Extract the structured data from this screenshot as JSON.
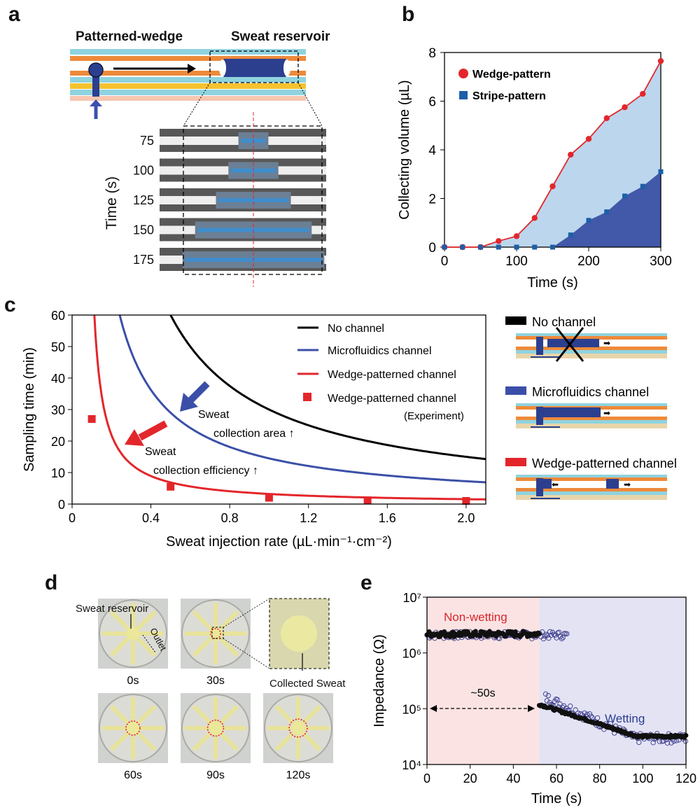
{
  "panels": {
    "a": {
      "letter": "a",
      "patterned_wedge": "Patterned-wedge",
      "sweat_reservoir": "Sweat reservoir",
      "ylabel": "Time (s)",
      "times": [
        "75",
        "100",
        "125",
        "150",
        "175"
      ],
      "fill_fraction": [
        0.18,
        0.3,
        0.45,
        0.7,
        0.85
      ]
    },
    "b": {
      "letter": "b"
    },
    "c": {
      "letter": "c",
      "schematic_labels": [
        "No channel",
        "Microfluidics channel",
        "Wedge-patterned channel"
      ],
      "colors": {
        "no_channel": "#000000",
        "micro": "#3b4fa8",
        "wedge": "#e3262b"
      },
      "annot1": "Sweat",
      "annot1b": "collection area ↑",
      "annot2": "Sweat",
      "annot2b": "collection efficiency ↑",
      "legend_exp_note": "(Experiment)"
    },
    "d": {
      "letter": "d",
      "sweat_reservoir": "Sweat  reservoir",
      "outlet": "Outlet",
      "collected": "Collected  Sweat",
      "times": [
        "0s",
        "30s",
        "60s",
        "90s",
        "120s"
      ]
    },
    "e": {
      "letter": "e",
      "non_wetting": "Non-wetting",
      "wetting": "Wetting",
      "approx": "~50s"
    }
  },
  "chart_data": [
    {
      "id": "b",
      "type": "area",
      "xlabel": "Time (s)",
      "ylabel": "Collecting volume (µL)",
      "xlim": [
        0,
        300
      ],
      "ylim": [
        0,
        8
      ],
      "xticks": [
        0,
        100,
        200,
        300
      ],
      "yticks": [
        0,
        2,
        4,
        6,
        8
      ],
      "legend_position": "top-left",
      "series": [
        {
          "name": "Wedge-pattern",
          "color": "#e3262b",
          "fill": "#bcd6ee",
          "marker": "circle",
          "x": [
            0,
            25,
            50,
            75,
            100,
            125,
            150,
            175,
            200,
            225,
            250,
            275,
            300
          ],
          "y": [
            0,
            0,
            0,
            0.25,
            0.45,
            1.2,
            2.5,
            3.8,
            4.45,
            5.3,
            5.75,
            6.3,
            7.65
          ]
        },
        {
          "name": "Stripe-pattern",
          "color": "#1d5fa8",
          "fill": "#4258a8",
          "marker": "square",
          "x": [
            0,
            25,
            50,
            75,
            100,
            125,
            150,
            175,
            200,
            225,
            250,
            275,
            300
          ],
          "y": [
            0,
            0,
            0,
            0,
            0,
            0,
            0,
            0.5,
            1.1,
            1.45,
            2.1,
            2.5,
            3.1
          ]
        }
      ]
    },
    {
      "id": "c",
      "type": "line",
      "xlabel": "Sweat injection rate (µL·min⁻¹·cm⁻²)",
      "ylabel": "Sampling time (min)",
      "xlim": [
        0,
        2.1
      ],
      "ylim": [
        0,
        60
      ],
      "xticks": [
        0,
        0.4,
        0.8,
        1.2,
        1.6,
        2.0
      ],
      "xticklabels": [
        "0",
        "0.4",
        "0.8",
        "1.2",
        "1.6",
        "2.0"
      ],
      "yticks": [
        0,
        10,
        20,
        30,
        40,
        50,
        60
      ],
      "legend_position": "top-right",
      "series": [
        {
          "name": "No channel",
          "color": "#000000",
          "type": "line",
          "k": 30
        },
        {
          "name": "Microfluidics channel",
          "color": "#3b4fa8",
          "type": "line",
          "k": 14.5
        },
        {
          "name": "Wedge-patterned channel",
          "color": "#e3262b",
          "type": "line",
          "k": 3.0,
          "x0": 0.063
        },
        {
          "name": "Wedge-patterned channel",
          "color": "#e3262b",
          "type": "scatter",
          "marker": "square",
          "x": [
            0.1,
            0.5,
            1.0,
            1.5,
            2.0
          ],
          "y": [
            27,
            5.5,
            2.0,
            1.2,
            1.0
          ]
        }
      ]
    },
    {
      "id": "e",
      "type": "scatter",
      "xlabel": "Time (s)",
      "ylabel": "Impedance (Ω)",
      "xlim": [
        0,
        120
      ],
      "ylim": [
        10000,
        10000000
      ],
      "yscale": "log",
      "xticks": [
        0,
        20,
        40,
        60,
        80,
        100,
        120
      ],
      "yticks": [
        "10⁴",
        "10⁵",
        "10⁶",
        "10⁷"
      ],
      "regions": [
        {
          "name": "Non-wetting",
          "x": [
            0,
            52
          ],
          "color": "#fbe3e3"
        },
        {
          "name": "Wetting",
          "x": [
            52,
            120
          ],
          "color": "#e3e3f4"
        }
      ],
      "series": [
        {
          "name": "filled",
          "marker": "filled-circle",
          "color": "#111111",
          "segments": [
            {
              "x": [
                0,
                52
              ],
              "y": 2200000
            },
            {
              "x": [
                52,
                120
              ],
              "y_start": 120000,
              "y_end": 32000
            }
          ]
        },
        {
          "name": "open",
          "marker": "open-circle",
          "color": "#3a3a8a",
          "segments": [
            {
              "x": [
                0,
                65
              ],
              "y": 2100000
            },
            {
              "x": [
                55,
                120
              ],
              "y_start": 160000,
              "y_end": 30000
            }
          ]
        }
      ]
    }
  ]
}
